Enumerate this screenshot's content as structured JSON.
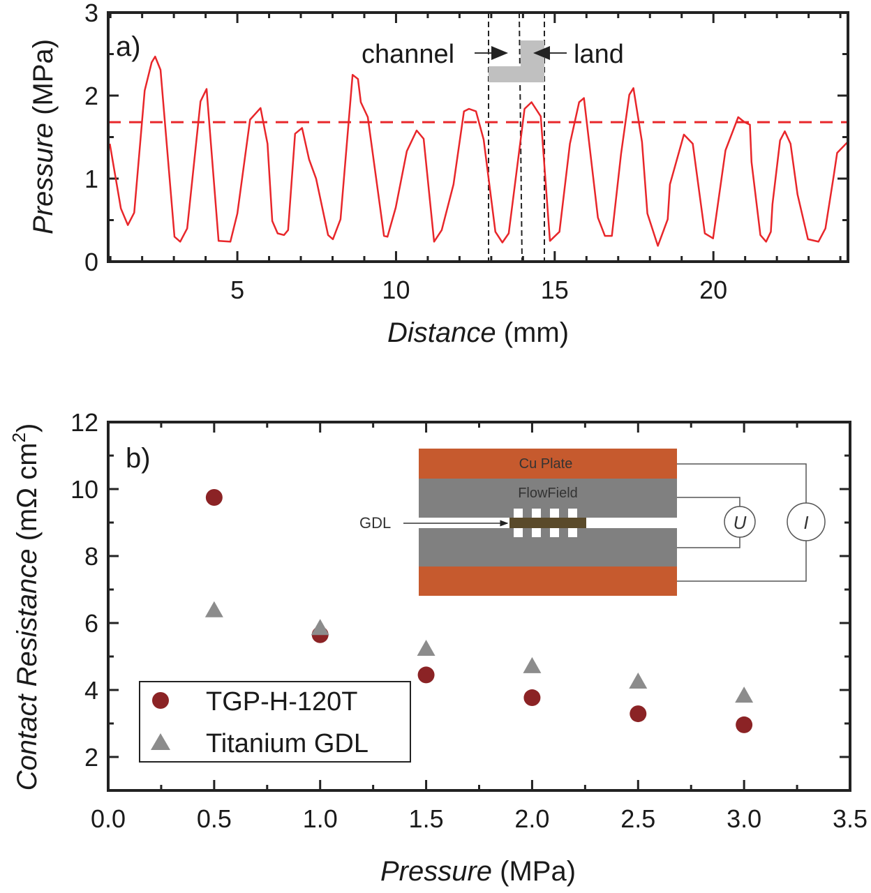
{
  "chart_data": [
    {
      "panel_label": "a)",
      "type": "line",
      "xlabel_italic": "Distance",
      "xlabel_unit": "(mm)",
      "ylabel_italic": "Pressure",
      "ylabel_unit": "(MPa)",
      "xlim": [
        0.93,
        24.24
      ],
      "ylim": [
        0,
        3
      ],
      "xticks": [
        5,
        10,
        15,
        20
      ],
      "yticks": [
        0,
        1,
        2,
        3
      ],
      "grid": false,
      "line_color": "#e8262a",
      "series": [
        {
          "x": [
            0.98,
            1.33,
            1.55,
            1.75,
            2.08,
            2.3,
            2.41,
            2.58,
            3.02,
            3.2,
            3.42,
            3.84,
            4.03,
            4.41,
            4.78,
            5.0,
            5.4,
            5.73,
            5.95,
            6.1,
            6.27,
            6.47,
            6.6,
            6.82,
            7.04,
            7.26,
            7.48,
            7.86,
            8.01,
            8.25,
            8.63,
            8.8,
            8.89,
            9.11,
            9.62,
            9.73,
            9.99,
            10.34,
            10.65,
            10.87,
            11.2,
            11.44,
            11.81,
            12.14,
            12.3,
            12.52,
            12.76,
            13.13,
            13.35,
            13.55,
            14.05,
            14.27,
            14.56,
            14.85,
            15.15,
            15.48,
            15.77,
            15.92,
            16.36,
            16.58,
            16.8,
            17.09,
            17.35,
            17.48,
            17.75,
            17.92,
            18.25,
            18.56,
            18.63,
            19.07,
            19.35,
            19.73,
            19.99,
            20.38,
            20.78,
            20.98,
            21.15,
            21.2,
            21.48,
            21.66,
            21.81,
            21.86,
            22.1,
            22.25,
            22.43,
            22.65,
            22.98,
            23.31,
            23.53,
            23.79,
            23.9,
            24.23
          ],
          "y": [
            1.42,
            0.64,
            0.44,
            0.59,
            2.06,
            2.4,
            2.47,
            2.31,
            0.3,
            0.24,
            0.4,
            1.93,
            2.08,
            0.25,
            0.24,
            0.58,
            1.71,
            1.85,
            1.42,
            0.49,
            0.34,
            0.32,
            0.38,
            1.54,
            1.61,
            1.23,
            1.0,
            0.32,
            0.27,
            0.51,
            2.25,
            2.2,
            1.92,
            1.74,
            0.31,
            0.3,
            0.65,
            1.33,
            1.58,
            1.48,
            0.24,
            0.38,
            0.93,
            1.81,
            1.84,
            1.81,
            1.47,
            0.36,
            0.23,
            0.34,
            1.84,
            1.92,
            1.75,
            0.25,
            0.36,
            1.42,
            1.92,
            1.97,
            0.53,
            0.31,
            0.31,
            1.3,
            2.01,
            2.09,
            1.44,
            0.58,
            0.19,
            0.51,
            0.93,
            1.53,
            1.42,
            0.34,
            0.28,
            1.34,
            1.74,
            1.68,
            1.65,
            1.2,
            0.32,
            0.24,
            0.36,
            0.69,
            1.46,
            1.57,
            1.42,
            0.81,
            0.27,
            0.24,
            0.4,
            1.03,
            1.31,
            1.44
          ]
        }
      ],
      "reference_line": {
        "y": 1.68,
        "style": "dashed",
        "color": "#e8262a"
      },
      "annotations": {
        "channel": "channel",
        "land": "land"
      }
    },
    {
      "panel_label": "b)",
      "type": "scatter",
      "xlabel_italic": "Pressure",
      "xlabel_unit": "(MPa)",
      "ylabel_italic": "Contact Resistance",
      "ylabel_unit": "(mΩ cm",
      "ylabel_sup": "2",
      "ylabel_close": ")",
      "xlim": [
        0,
        3.5
      ],
      "ylim": [
        1,
        12
      ],
      "xticks": [
        "0.0",
        "0.5",
        "1.0",
        "1.5",
        "2.0",
        "2.5",
        "3.0",
        "3.5"
      ],
      "yticks": [
        2,
        4,
        6,
        8,
        10,
        12
      ],
      "grid": false,
      "legend_position": "bottom-left",
      "series": [
        {
          "name": "TGP-H-120T",
          "marker": "circle",
          "color": "#8b2325",
          "x": [
            0.5,
            1.0,
            1.5,
            2.0,
            2.5,
            3.0
          ],
          "y": [
            9.75,
            5.65,
            4.45,
            3.77,
            3.29,
            2.96
          ]
        },
        {
          "name": "Titanium GDL",
          "marker": "triangle",
          "color": "#8c8c8c",
          "x": [
            0.5,
            1.0,
            1.5,
            2.0,
            2.5,
            3.0
          ],
          "y": [
            6.38,
            5.85,
            5.23,
            4.71,
            4.25,
            3.83
          ]
        }
      ],
      "inset": {
        "top_plate": "Cu Plate",
        "flow_field": "FlowField",
        "gdl": "GDL",
        "voltmeter": "U",
        "ammeter": "I",
        "copper_color": "#c65a2e",
        "flowfield_color": "#808080",
        "gdl_color": "#5a4a2a"
      }
    }
  ]
}
